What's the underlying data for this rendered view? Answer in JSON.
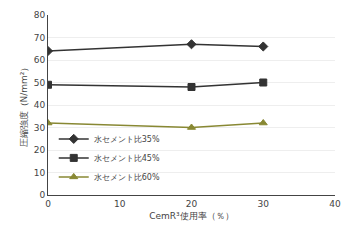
{
  "chart_data": {
    "type": "line",
    "x": [
      0,
      20,
      30
    ],
    "series": [
      {
        "name": "水セメント比35%",
        "color": "#333333",
        "marker": "diamond",
        "values": [
          64,
          67,
          66
        ]
      },
      {
        "name": "水セメント比45%",
        "color": "#333333",
        "marker": "square",
        "values": [
          49,
          48,
          50
        ]
      },
      {
        "name": "水セメント比60%",
        "color": "#888833",
        "marker": "triangle-up",
        "values": [
          32,
          30,
          32
        ]
      }
    ],
    "xlabel": "CemR³使用率（％）",
    "ylabel": "圧縮強度（N/mm²）",
    "xlim": [
      0,
      40
    ],
    "ylim": [
      0,
      80
    ],
    "xticks": [
      0,
      10,
      20,
      30,
      40
    ],
    "yticks": [
      0,
      10,
      20,
      30,
      40,
      50,
      60,
      70,
      80
    ],
    "grid": true,
    "legend": "lower left"
  }
}
